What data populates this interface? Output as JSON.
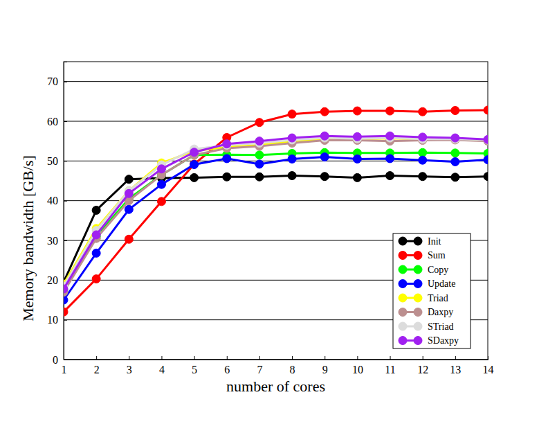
{
  "chart_data": {
    "type": "line",
    "x_label": "number of cores",
    "y_label": "Memory bandwidth [GB/s]",
    "x": [
      1,
      2,
      3,
      4,
      5,
      6,
      7,
      8,
      9,
      10,
      11,
      12,
      13,
      14
    ],
    "xlim": [
      1,
      14
    ],
    "xticks": [
      1,
      2,
      3,
      4,
      5,
      6,
      7,
      8,
      9,
      10,
      11,
      12,
      13,
      14
    ],
    "ylim": [
      0,
      75
    ],
    "yticks": [
      0,
      10,
      20,
      30,
      40,
      50,
      60,
      70
    ],
    "grid": true,
    "legend": "lower right",
    "marker": "circle",
    "series": [
      {
        "name": "Init",
        "color": "#000000",
        "values": [
          19.5,
          37.6,
          45.4,
          45.7,
          45.8,
          46.0,
          46.0,
          46.3,
          46.1,
          45.8,
          46.3,
          46.1,
          45.9,
          46.1
        ]
      },
      {
        "name": "Sum",
        "color": "#ff0000",
        "values": [
          12.0,
          20.3,
          30.3,
          39.8,
          49.2,
          55.9,
          59.7,
          61.8,
          62.4,
          62.6,
          62.6,
          62.4,
          62.7,
          62.8
        ]
      },
      {
        "name": "Copy",
        "color": "#00ff00",
        "values": [
          17.5,
          31.0,
          40.5,
          46.5,
          51.5,
          51.6,
          51.5,
          51.9,
          52.1,
          52.0,
          52.0,
          52.1,
          52.0,
          51.9
        ]
      },
      {
        "name": "Update",
        "color": "#0000ff",
        "values": [
          15.0,
          26.8,
          37.8,
          44.1,
          49.1,
          50.6,
          49.2,
          50.5,
          51.0,
          50.5,
          50.6,
          50.2,
          49.8,
          50.3
        ]
      },
      {
        "name": "Triad",
        "color": "#ffff00",
        "values": [
          19.0,
          33.0,
          42.5,
          49.5,
          52.5,
          53.5,
          54.0,
          55.0,
          55.5,
          55.5,
          55.7,
          55.5,
          55.4,
          55.2
        ]
      },
      {
        "name": "Daxpy",
        "color": "#bc8f8f",
        "values": [
          17.0,
          30.5,
          40.0,
          46.5,
          51.5,
          53.2,
          53.7,
          54.5,
          55.2,
          55.2,
          55.0,
          55.2,
          55.3,
          55.0
        ]
      },
      {
        "name": "STriad",
        "color": "#dcdcdc",
        "values": [
          18.5,
          32.5,
          42.5,
          49.0,
          53.0,
          54.0,
          54.5,
          55.3,
          55.8,
          55.6,
          55.8,
          55.5,
          55.5,
          55.3
        ]
      },
      {
        "name": "SDaxpy",
        "color": "#a020f0",
        "values": [
          17.8,
          31.4,
          41.8,
          48.0,
          52.2,
          54.3,
          55.0,
          55.8,
          56.3,
          56.1,
          56.3,
          56.0,
          55.8,
          55.4
        ]
      }
    ]
  }
}
